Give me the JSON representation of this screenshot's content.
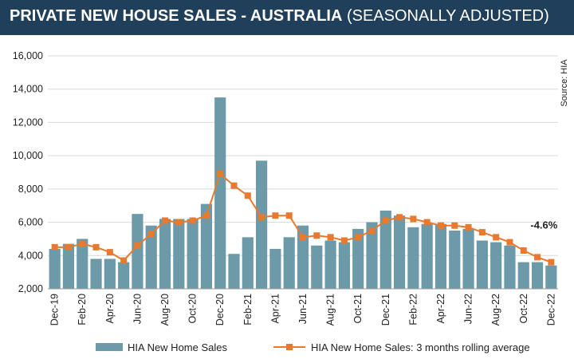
{
  "header": {
    "title_main": "PRIVATE NEW HOUSE SALES -  AUSTRALIA",
    "title_sub": "(SEASONALLY ADJUSTED)"
  },
  "source_label": "Source: HIA",
  "colors": {
    "header_bg": "#1f3f5a",
    "bar": "#6d9aa8",
    "line": "#e8792e",
    "grid": "#d9d9d9"
  },
  "chart_data": {
    "type": "bar",
    "title": "PRIVATE NEW HOUSE SALES -  AUSTRALIA (SEASONALLY ADJUSTED)",
    "xlabel": "",
    "ylabel": "",
    "ylim": [
      2000,
      16000
    ],
    "yticks": [
      2000,
      4000,
      6000,
      8000,
      10000,
      12000,
      14000,
      16000
    ],
    "ytick_labels": [
      "2,000",
      "4,000",
      "6,000",
      "8,000",
      "10,000",
      "12,000",
      "14,000",
      "16,000"
    ],
    "xtick_labels": [
      "Dec-19",
      "Feb-20",
      "Apr-20",
      "Jun-20",
      "Aug-20",
      "Oct-20",
      "Dec-20",
      "Feb-21",
      "Apr-21",
      "Jun-21",
      "Aug-21",
      "Oct-21",
      "Dec-21",
      "Feb-22",
      "Apr-22",
      "Jun-22",
      "Aug-22",
      "Oct-22",
      "Dec-22"
    ],
    "categories": [
      "Dec-19",
      "Jan-20",
      "Feb-20",
      "Mar-20",
      "Apr-20",
      "May-20",
      "Jun-20",
      "Jul-20",
      "Aug-20",
      "Sep-20",
      "Oct-20",
      "Nov-20",
      "Dec-20",
      "Jan-21",
      "Feb-21",
      "Mar-21",
      "Apr-21",
      "May-21",
      "Jun-21",
      "Jul-21",
      "Aug-21",
      "Sep-21",
      "Oct-21",
      "Nov-21",
      "Dec-21",
      "Jan-22",
      "Feb-22",
      "Mar-22",
      "Apr-22",
      "May-22",
      "Jun-22",
      "Jul-22",
      "Aug-22",
      "Sep-22",
      "Oct-22",
      "Nov-22",
      "Dec-22"
    ],
    "series": [
      {
        "name": "HIA New Home Sales",
        "kind": "bar",
        "values": [
          4400,
          4700,
          5000,
          3800,
          3800,
          3600,
          6500,
          5800,
          6200,
          6200,
          6200,
          7100,
          13500,
          4100,
          5100,
          9700,
          4400,
          5100,
          5800,
          4600,
          4900,
          4800,
          5600,
          6000,
          6700,
          6400,
          5700,
          5900,
          5900,
          5500,
          5600,
          4900,
          4800,
          4600,
          3600,
          3600,
          3400
        ]
      },
      {
        "name": "HIA New Home Sales: 3 months rolling average",
        "kind": "line",
        "values": [
          4500,
          4500,
          4700,
          4500,
          4200,
          3700,
          4600,
          5300,
          6100,
          6000,
          6100,
          6400,
          8900,
          8200,
          7600,
          6300,
          6400,
          6400,
          5100,
          5200,
          5100,
          4900,
          5100,
          5500,
          6100,
          6300,
          6200,
          6000,
          5800,
          5800,
          5700,
          5400,
          5100,
          4800,
          4300,
          3900,
          3600
        ]
      }
    ],
    "annotations": [
      {
        "text": "-4.6%",
        "at": "Dec-22"
      }
    ],
    "legend_position": "bottom"
  }
}
